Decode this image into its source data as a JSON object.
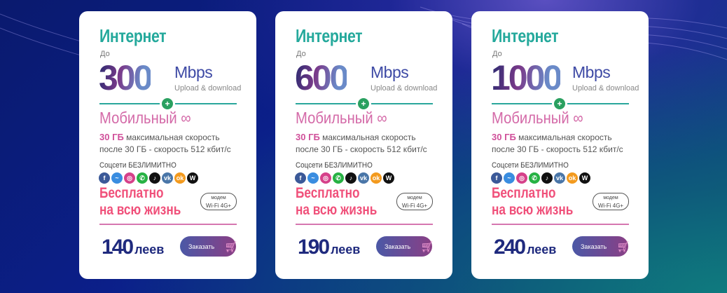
{
  "colors": {
    "teal": "#25a99c",
    "pink": "#d46aa8",
    "red": "#f0507a",
    "navy": "#1f2a7e"
  },
  "common": {
    "internet_title": "Интернет",
    "up_to": "До",
    "unit": "Mbps",
    "upload_download": "Upload & download",
    "mobile": "Мобильный",
    "infinity": "∞",
    "gb_bold": "30 ГБ",
    "gb_text": "максимальная скорость",
    "after_text": "после 30 ГБ - скорость 512 кбит/с",
    "social": "Соцсети БЕЗЛИМИТНО",
    "free_line1": "Бесплатно",
    "free_line2": "на всю жизнь",
    "modem_line1": "модем",
    "modem_line2": "Wi-Fi 4G+",
    "currency": "леев",
    "order": "Заказать",
    "plus": "+",
    "social_icons": [
      {
        "name": "facebook-icon",
        "glyph": "f",
        "color": "#3b5998"
      },
      {
        "name": "messenger-icon",
        "glyph": "~",
        "color": "#3a8de0"
      },
      {
        "name": "instagram-icon",
        "glyph": "◎",
        "color": "#d6418a"
      },
      {
        "name": "whatsapp-icon",
        "glyph": "✆",
        "color": "#27b244"
      },
      {
        "name": "tiktok-icon",
        "glyph": "♪",
        "color": "#111111"
      },
      {
        "name": "vk-icon",
        "glyph": "vk",
        "color": "#4a76a8"
      },
      {
        "name": "odnoklassniki-icon",
        "glyph": "ok",
        "color": "#f39a1e"
      },
      {
        "name": "wikipedia-icon",
        "glyph": "W",
        "color": "#111111"
      }
    ]
  },
  "plans": [
    {
      "speed": "300",
      "price": "140"
    },
    {
      "speed": "600",
      "price": "190"
    },
    {
      "speed": "1000",
      "price": "240"
    }
  ]
}
